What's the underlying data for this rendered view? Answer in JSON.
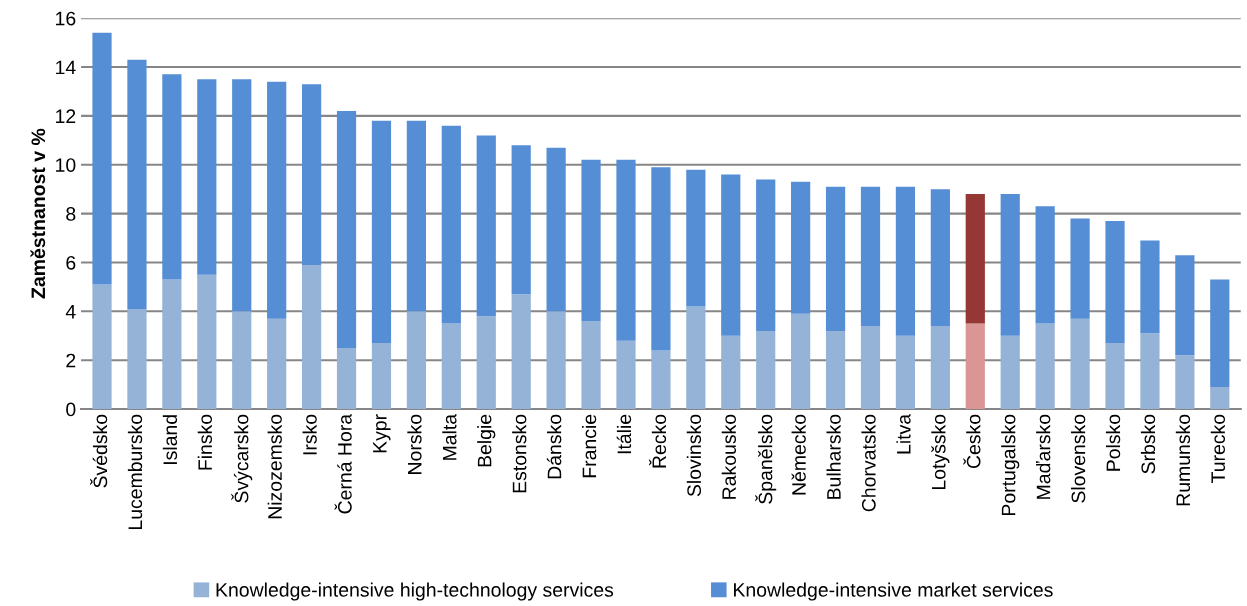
{
  "chart_data": {
    "type": "bar",
    "stacked": true,
    "ylabel": "Zaměstnanost v %",
    "categories": [
      "Švédsko",
      "Lucembursko",
      "Island",
      "Finsko",
      "Švýcarsko",
      "Nizozemsko",
      "Irsko",
      "Černá Hora",
      "Kypr",
      "Norsko",
      "Malta",
      "Belgie",
      "Estonsko",
      "Dánsko",
      "Francie",
      "Itálie",
      "Řecko",
      "Slovinsko",
      "Rakousko",
      "Španělsko",
      "Německo",
      "Bulharsko",
      "Chorvatsko",
      "Litva",
      "Lotyšsko",
      "Česko",
      "Portugalsko",
      "Maďarsko",
      "Slovensko",
      "Polsko",
      "Srbsko",
      "Rumunsko",
      "Turecko"
    ],
    "series": [
      {
        "name": "Knowledge-intensive high-technology services",
        "color": "#95b3d7",
        "colors": [
          "#95b3d7",
          "#95b3d7",
          "#95b3d7",
          "#95b3d7",
          "#95b3d7",
          "#95b3d7",
          "#95b3d7",
          "#95b3d7",
          "#95b3d7",
          "#95b3d7",
          "#95b3d7",
          "#95b3d7",
          "#95b3d7",
          "#95b3d7",
          "#95b3d7",
          "#95b3d7",
          "#95b3d7",
          "#95b3d7",
          "#95b3d7",
          "#95b3d7",
          "#95b3d7",
          "#95b3d7",
          "#95b3d7",
          "#95b3d7",
          "#95b3d7",
          "#d99694",
          "#95b3d7",
          "#95b3d7",
          "#95b3d7",
          "#95b3d7",
          "#95b3d7",
          "#95b3d7",
          "#95b3d7"
        ],
        "values": [
          5.1,
          4.1,
          5.3,
          5.5,
          4.0,
          3.7,
          5.9,
          2.5,
          2.7,
          4.0,
          3.5,
          3.8,
          4.7,
          4.0,
          3.6,
          2.8,
          2.4,
          4.2,
          3.0,
          3.2,
          3.9,
          3.2,
          3.4,
          3.0,
          3.4,
          3.5,
          3.0,
          3.5,
          3.7,
          2.7,
          3.1,
          2.2,
          0.9
        ]
      },
      {
        "name": "Knowledge-intensive market services",
        "color": "#558ed5",
        "colors": [
          "#558ed5",
          "#558ed5",
          "#558ed5",
          "#558ed5",
          "#558ed5",
          "#558ed5",
          "#558ed5",
          "#558ed5",
          "#558ed5",
          "#558ed5",
          "#558ed5",
          "#558ed5",
          "#558ed5",
          "#558ed5",
          "#558ed5",
          "#558ed5",
          "#558ed5",
          "#558ed5",
          "#558ed5",
          "#558ed5",
          "#558ed5",
          "#558ed5",
          "#558ed5",
          "#558ed5",
          "#558ed5",
          "#953735",
          "#558ed5",
          "#558ed5",
          "#558ed5",
          "#558ed5",
          "#558ed5",
          "#558ed5",
          "#558ed5"
        ],
        "values": [
          10.3,
          10.2,
          8.4,
          8.0,
          9.5,
          9.7,
          7.4,
          9.7,
          9.1,
          7.8,
          8.1,
          7.4,
          6.1,
          6.7,
          6.6,
          7.4,
          7.5,
          5.6,
          6.6,
          6.2,
          5.4,
          5.9,
          5.7,
          6.1,
          5.6,
          5.3,
          5.8,
          4.8,
          4.1,
          5.0,
          3.8,
          4.1,
          4.4
        ]
      }
    ],
    "ylim": [
      0,
      16
    ],
    "yticks": [
      0,
      2,
      4,
      6,
      8,
      10,
      12,
      14,
      16
    ],
    "grid": "y",
    "legend": "bottom"
  }
}
